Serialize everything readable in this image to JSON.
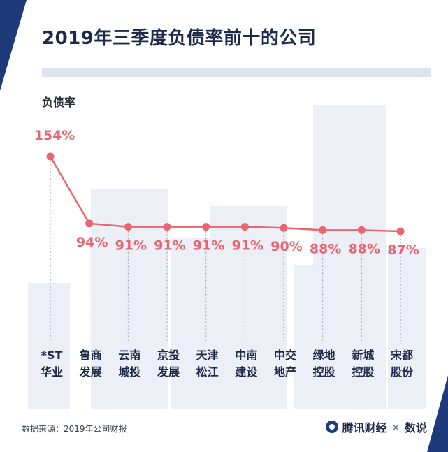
{
  "title": "2019年三季度负债率前十的公司",
  "ylabel": "负债率",
  "footer": {
    "source": "数据来源：2019年公司财报",
    "brand_left": "腾讯财经",
    "brand_times": "×",
    "brand_right": "数说"
  },
  "colors": {
    "navy": "#1f2a4a",
    "accent": "#e8666f",
    "title_bar": "#dfe3ef",
    "building": "#eceff6"
  },
  "chart_data": {
    "type": "line",
    "title": "2019年三季度负债率前十的公司",
    "ylabel": "负债率",
    "unit": "%",
    "categories": [
      [
        "*ST",
        "华业"
      ],
      [
        "鲁商",
        "发展"
      ],
      [
        "云南",
        "城投"
      ],
      [
        "京投",
        "发展"
      ],
      [
        "天津",
        "松江"
      ],
      [
        "中南",
        "建设"
      ],
      [
        "中交",
        "地产"
      ],
      [
        "绿地",
        "控股"
      ],
      [
        "新城",
        "控股"
      ],
      [
        "宋都",
        "股份"
      ]
    ],
    "values": [
      154,
      94,
      91,
      91,
      91,
      91,
      90,
      88,
      88,
      87
    ],
    "data_labels": [
      "154%",
      "94%",
      "91%",
      "91%",
      "91%",
      "91%",
      "90%",
      "88%",
      "88%",
      "87%"
    ],
    "ylim": [
      87,
      154
    ],
    "grid": false,
    "legend": "none"
  }
}
